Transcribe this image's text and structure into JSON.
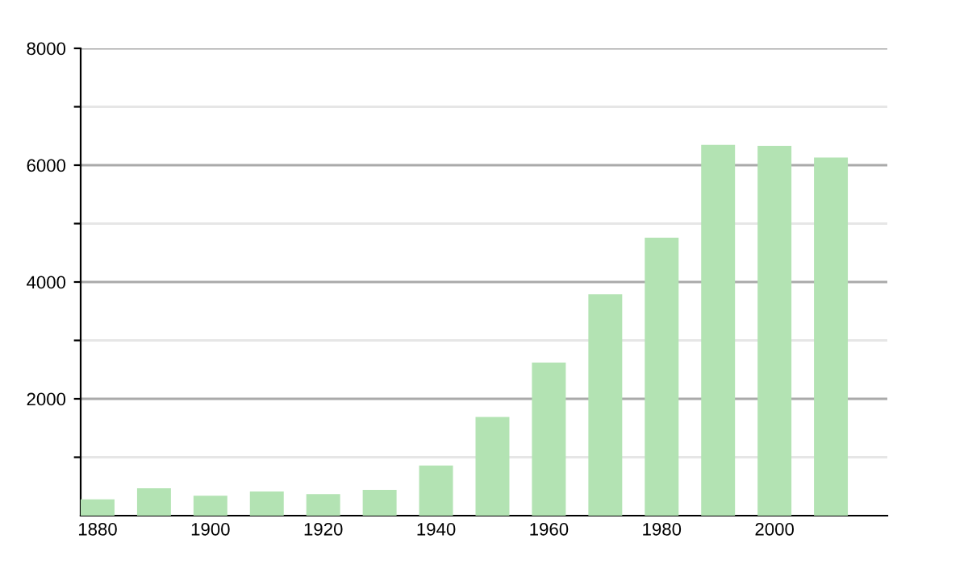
{
  "chart_data": {
    "type": "bar",
    "x": [
      1880,
      1890,
      1900,
      1910,
      1920,
      1930,
      1940,
      1950,
      1960,
      1970,
      1980,
      1990,
      2000,
      2010
    ],
    "values": [
      280,
      470,
      340,
      415,
      370,
      440,
      860,
      1690,
      2620,
      3790,
      4760,
      6350,
      6330,
      6130
    ],
    "color": "#b3e3b3",
    "xlim": [
      1877,
      2020
    ],
    "xticks": [
      1880,
      1900,
      1920,
      1940,
      1960,
      1980,
      2000
    ],
    "ylim": [
      0,
      8000
    ],
    "yticks": [
      {
        "value": 1000,
        "label": null
      },
      2000,
      {
        "value": 3000,
        "label": null
      },
      4000,
      {
        "value": 5000,
        "label": null
      },
      6000,
      {
        "value": 7000,
        "label": null
      },
      8000
    ],
    "grid": "y",
    "legend": false
  }
}
